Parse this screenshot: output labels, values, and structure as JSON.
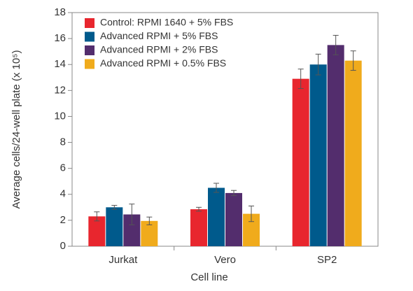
{
  "chart_data": {
    "type": "bar",
    "x_label": "Cell line",
    "y_label": "Average cells/24-well plate (x 10⁵)",
    "categories": [
      "Jurkat",
      "Vero",
      "SP2"
    ],
    "series": [
      {
        "name": "Control: RPMI 1640 + 5% FBS",
        "color": "#e8262e",
        "values": [
          2.3,
          2.85,
          12.9
        ],
        "errors": [
          0.35,
          0.15,
          0.75
        ]
      },
      {
        "name": "Advanced RPMI + 5% FBS",
        "color": "#005a8c",
        "values": [
          3.0,
          4.5,
          14.0
        ],
        "errors": [
          0.15,
          0.35,
          0.8
        ]
      },
      {
        "name": "Advanced RPMI + 2% FBS",
        "color": "#532d6d",
        "values": [
          2.45,
          4.1,
          15.5
        ],
        "errors": [
          0.8,
          0.2,
          0.75
        ]
      },
      {
        "name": "Advanced RPMI + 0.5% FBS",
        "color": "#f0ab1c",
        "values": [
          1.95,
          2.5,
          14.3
        ],
        "errors": [
          0.3,
          0.6,
          0.75
        ]
      }
    ],
    "ylim": [
      0,
      18
    ],
    "yticks": [
      0,
      2,
      4,
      6,
      8,
      10,
      12,
      14,
      16,
      18
    ],
    "legend": "upper-left"
  }
}
